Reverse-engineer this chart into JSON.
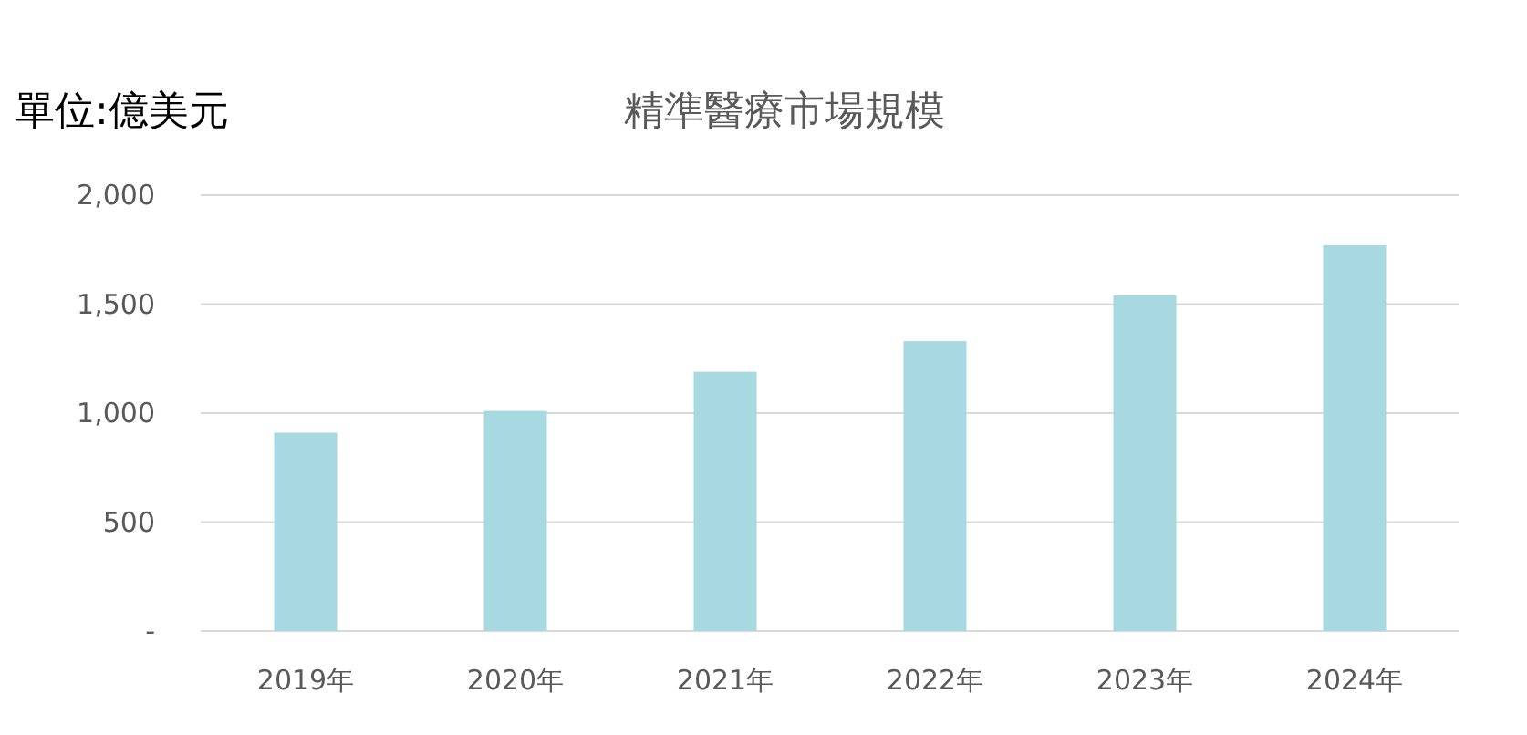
{
  "chart_data": {
    "type": "bar",
    "title": "精準醫療市場規模",
    "ylabel": "單位:億美元",
    "categories": [
      "2019年",
      "2020年",
      "2021年",
      "2022年",
      "2023年",
      "2024年"
    ],
    "values": [
      910,
      1010,
      1190,
      1330,
      1540,
      1770
    ],
    "color": "#a8d8e0",
    "ylim": [
      0,
      2000
    ],
    "yticks": [
      {
        "value": 0,
        "label": "-"
      },
      {
        "value": 500,
        "label": "500"
      },
      {
        "value": 1000,
        "label": "1,000"
      },
      {
        "value": 1500,
        "label": "1,500"
      },
      {
        "value": 2000,
        "label": "2,000"
      }
    ],
    "grid": "y"
  }
}
